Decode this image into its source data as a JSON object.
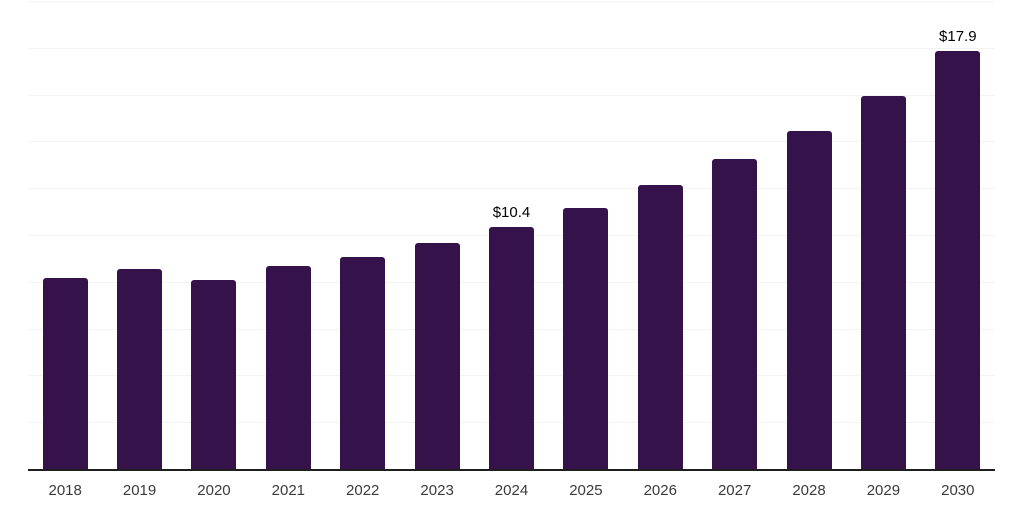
{
  "chart_data": {
    "type": "bar",
    "title": "",
    "xlabel": "",
    "ylabel": "",
    "categories": [
      "2018",
      "2019",
      "2020",
      "2021",
      "2022",
      "2023",
      "2024",
      "2025",
      "2026",
      "2027",
      "2028",
      "2029",
      "2030"
    ],
    "values": [
      8.2,
      8.6,
      8.1,
      8.7,
      9.1,
      9.7,
      10.4,
      11.2,
      12.2,
      13.3,
      14.5,
      16.0,
      17.9
    ],
    "data_labels": [
      "",
      "",
      "",
      "",
      "",
      "",
      "$10.4",
      "",
      "",
      "",
      "",
      "",
      "$17.9"
    ],
    "ylim": [
      0,
      20
    ],
    "grid_step": 2,
    "grid_on": true,
    "legend_position": "none",
    "colors": {
      "bar_fill": "#36124b",
      "gridline": "#f3f3f3",
      "axis_line": "#1f1f1f",
      "tick_label": "#3b3b3b",
      "data_label": "#000000",
      "background": "#ffffff"
    }
  }
}
